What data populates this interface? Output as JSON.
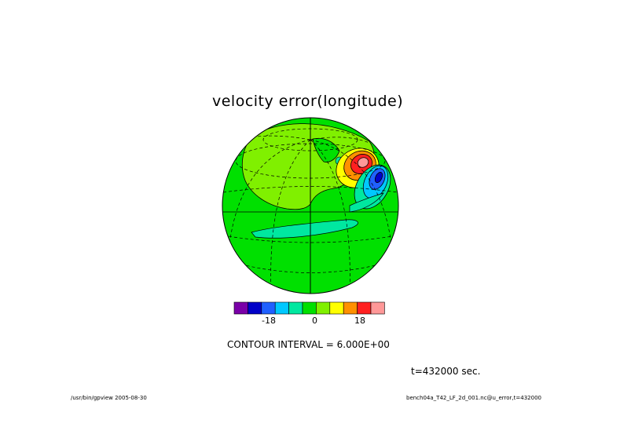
{
  "plot": {
    "title": "velocity error(longitude)",
    "contour_interval_text": "CONTOUR INTERVAL = 6.000E+00",
    "time_text": "t=432000 sec.",
    "footer_left": "/usr/bin/gpview  2005-08-30",
    "footer_right": "bench04a_T42_LF_2d_001.nc@u_error,t=432000"
  },
  "colorbar": {
    "colors": [
      "#7a00a8",
      "#0000c8",
      "#2060ff",
      "#00c8ff",
      "#00e8a0",
      "#00e000",
      "#80f000",
      "#ffff00",
      "#ff9000",
      "#ff2020",
      "#ff9898"
    ],
    "tick_labels": [
      "-18",
      "0",
      "18"
    ]
  },
  "field_colors": {
    "background_level": "#00e000",
    "light_level": "#80f000",
    "band_level": "#00e8a0"
  }
}
